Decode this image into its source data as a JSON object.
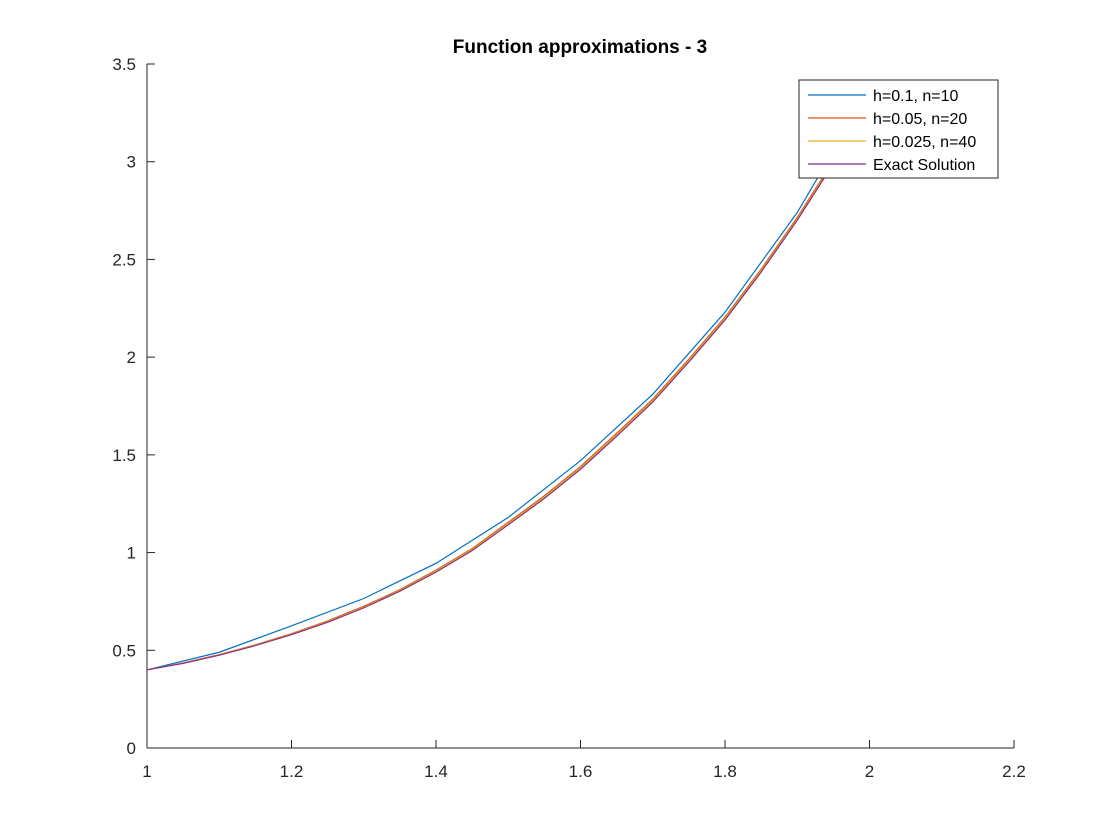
{
  "chart_data": {
    "type": "line",
    "title": "Function approximations - 3",
    "xlabel": "",
    "ylabel": "",
    "xlim": [
      1,
      2.2
    ],
    "ylim": [
      0,
      3.5
    ],
    "xticks": [
      1,
      1.2,
      1.4,
      1.6,
      1.8,
      2,
      2.2
    ],
    "xtick_labels": [
      "1",
      "1.2",
      "1.4",
      "1.6",
      "1.8",
      "2",
      "2.2"
    ],
    "yticks": [
      0,
      0.5,
      1,
      1.5,
      2,
      2.5,
      3,
      3.5
    ],
    "ytick_labels": [
      "0",
      "0.5",
      "1",
      "1.5",
      "2",
      "2.5",
      "3",
      "3.5"
    ],
    "grid": false,
    "legend_position": "top-right",
    "series": [
      {
        "name": "h=0.1, n=10",
        "color": "#0072BD",
        "x": [
          1.0,
          1.1,
          1.2,
          1.3,
          1.4,
          1.5,
          1.6,
          1.7,
          1.8,
          1.9,
          2.0
        ],
        "y": [
          0.4,
          0.49,
          0.625,
          0.765,
          0.945,
          1.18,
          1.47,
          1.81,
          2.23,
          2.74,
          3.37
        ]
      },
      {
        "name": "h=0.05, n=20",
        "color": "#D95319",
        "x": [
          1.0,
          1.05,
          1.1,
          1.15,
          1.2,
          1.25,
          1.3,
          1.35,
          1.4,
          1.45,
          1.5,
          1.55,
          1.6,
          1.65,
          1.7,
          1.75,
          1.8,
          1.85,
          1.9,
          1.95,
          2.0
        ],
        "y": [
          0.4,
          0.435,
          0.478,
          0.528,
          0.585,
          0.65,
          0.725,
          0.81,
          0.91,
          1.02,
          1.155,
          1.29,
          1.44,
          1.61,
          1.785,
          1.99,
          2.205,
          2.45,
          2.715,
          3.005,
          3.33
        ]
      },
      {
        "name": "h=0.025, n=40",
        "color": "#EDB120",
        "x": [
          1.0,
          1.05,
          1.1,
          1.15,
          1.2,
          1.25,
          1.3,
          1.35,
          1.4,
          1.45,
          1.5,
          1.55,
          1.6,
          1.65,
          1.7,
          1.75,
          1.8,
          1.85,
          1.9,
          1.95,
          2.0
        ],
        "y": [
          0.4,
          0.434,
          0.476,
          0.526,
          0.582,
          0.646,
          0.72,
          0.805,
          0.905,
          1.015,
          1.148,
          1.283,
          1.432,
          1.602,
          1.777,
          1.982,
          2.197,
          2.442,
          2.706,
          2.996,
          3.32
        ]
      },
      {
        "name": "Exact Solution",
        "color": "#7E2F8E",
        "x": [
          1.0,
          1.05,
          1.1,
          1.15,
          1.2,
          1.25,
          1.3,
          1.35,
          1.4,
          1.45,
          1.5,
          1.55,
          1.6,
          1.65,
          1.7,
          1.75,
          1.8,
          1.85,
          1.9,
          1.95,
          2.0
        ],
        "y": [
          0.4,
          0.433,
          0.475,
          0.524,
          0.58,
          0.643,
          0.717,
          0.802,
          0.9,
          1.01,
          1.142,
          1.277,
          1.426,
          1.595,
          1.77,
          1.975,
          2.19,
          2.435,
          2.7,
          2.99,
          3.31
        ]
      }
    ]
  }
}
